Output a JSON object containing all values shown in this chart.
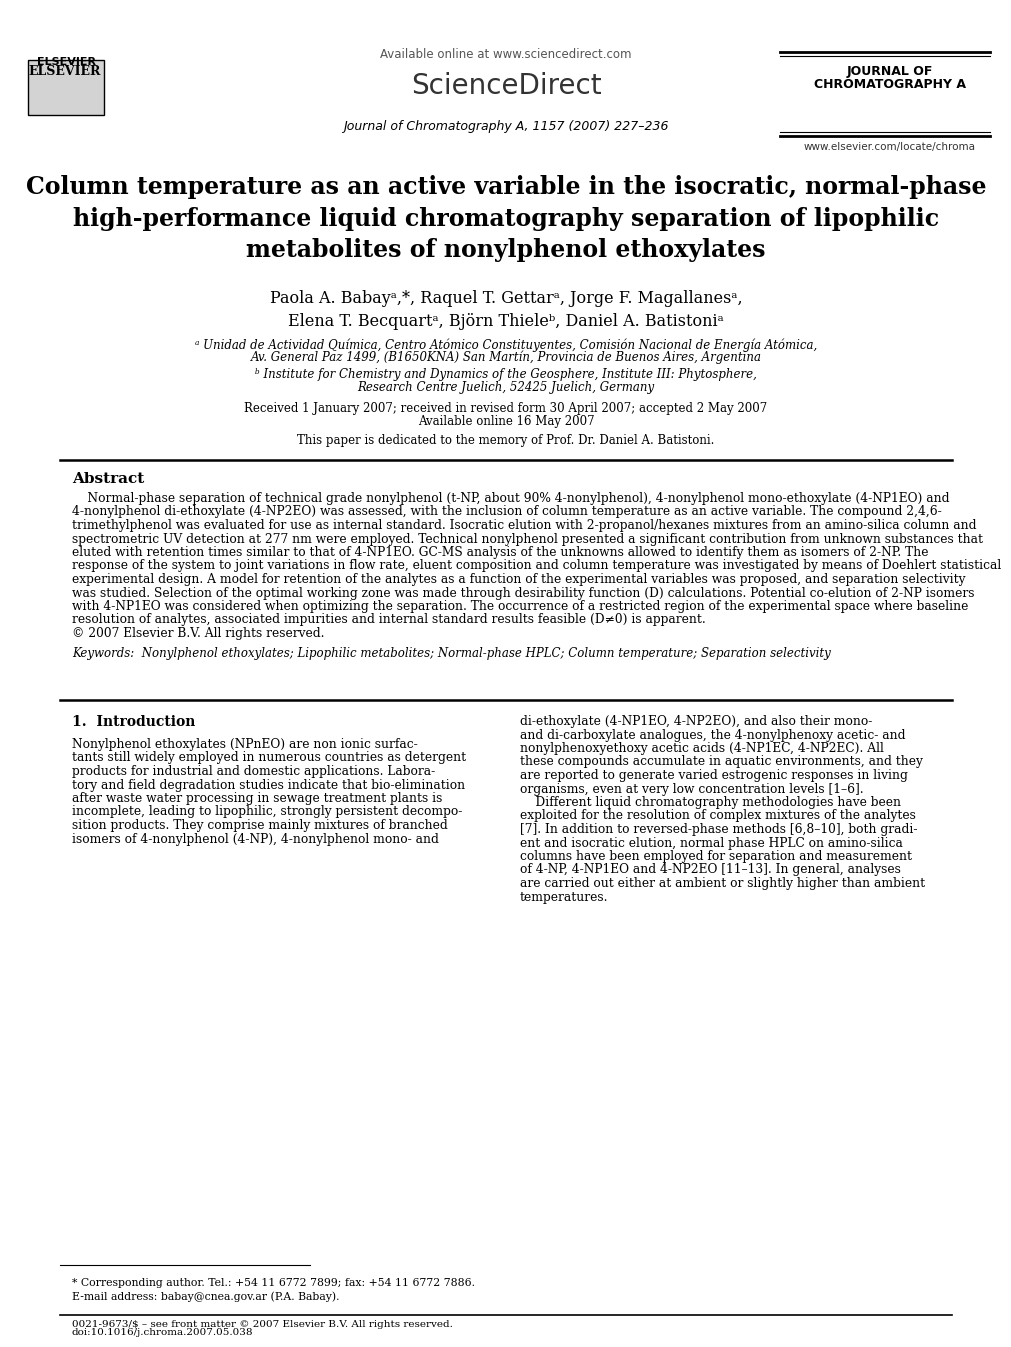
{
  "figsize": [
    9.92,
    13.23
  ],
  "dpi": 100,
  "bg_color": "#ffffff",
  "header": {
    "available_online": "Available online at www.sciencedirect.com",
    "sciencedirect": "ScienceDirect",
    "journal_line": "Journal of Chromatography A, 1157 (2007) 227–236",
    "journal_name_line1": "JOURNAL OF",
    "journal_name_line2": "CHROMATOGRAPHY A",
    "website": "www.elsevier.com/locate/chroma",
    "elsevier": "ELSEVIER"
  },
  "title": "Column temperature as an active variable in the isocratic, normal-phase\nhigh-performance liquid chromatography separation of lipophilic\nmetabolites of nonylphenol ethoxylates",
  "authors": "Paola A. Babayᵃ,*, Raquel T. Gettarᵃ, Jorge F. Magallanesᵃ,\nElena T. Becquartᵃ, Björn Thieleᵇ, Daniel A. Batistoniᵃ",
  "affiliation_a": "ᵃ Unidad de Actividad Química, Centro Atómico Constituyentes, Comisión Nacional de Energía Atómica,",
  "affiliation_a2": "Av. General Paz 1499, (B1650KNA) San Martín, Provincia de Buenos Aires, Argentina",
  "affiliation_b": "ᵇ Institute for Chemistry and Dynamics of the Geosphere, Institute III: Phytosphere,",
  "affiliation_b2": "Research Centre Juelich, 52425 Juelich, Germany",
  "received": "Received 1 January 2007; received in revised form 30 April 2007; accepted 2 May 2007",
  "available_online2": "Available online 16 May 2007",
  "dedication": "This paper is dedicated to the memory of Prof. Dr. Daniel A. Batistoni.",
  "abstract_title": "Abstract",
  "abstract_text": "Normal-phase separation of technical grade nonylphenol (t-NP, about 90% 4-nonylphenol), 4-nonylphenol mono-ethoxylate (4-NP1EO) and 4-nonylphenol di-ethoxylate (4-NP2EO) was assessed, with the inclusion of column temperature as an active variable. The compound 2,4,6-trimethylphenol was evaluated for use as internal standard. Isocratic elution with 2-propanol/hexanes mixtures from an amino-silica column and spectrometric UV detection at 277 nm were employed. Technical nonylphenol presented a significant contribution from unknown substances that eluted with retention times similar to that of 4-NP1EO. GC-MS analysis of the unknowns allowed to identify them as isomers of 2-NP. The response of the system to joint variations in flow rate, eluent composition and column temperature was investigated by means of Doehlert statistical experimental design. A model for retention of the analytes as a function of the experimental variables was proposed, and separation selectivity was studied. Selection of the optimal working zone was made through desirability function (D) calculations. Potential co-elution of 2-NP isomers with 4-NP1EO was considered when optimizing the separation. The occurrence of a restricted region of the experimental space where baseline resolution of analytes, associated impurities and internal standard results feasible (D≠0) is apparent.\n© 2007 Elsevier B.V. All rights reserved.",
  "keywords": "Keywords:  Nonylphenol ethoxylates; Lipophilic metabolites; Normal-phase HPLC; Column temperature; Separation selectivity",
  "section1_title": "1.  Introduction",
  "section1_left": "Nonylphenol ethoxylates (NPnEO) are non ionic surfactants still widely employed in numerous countries as detergent products for industrial and domestic applications. Laboratory and field degradation studies indicate that bio-elimination after waste water processing in sewage treatment plants is incomplete, leading to lipophilic, strongly persistent decomposition products. They comprise mainly mixtures of branched isomers of 4-nonylphenol (4-NP), 4-nonylphenol mono- and",
  "section1_right": "di-ethoxylate (4-NP1EO, 4-NP2EO), and also their mono- and di-carboxylate analogues, the 4-nonylphenoxy acetic- and nonylphenoxyethoxy acetic acids (4-NP1EC, 4-NP2EC). All these compounds accumulate in aquatic environments, and they are reported to generate varied estrogenic responses in living organisms, even at very low concentration levels [1–6].\n    Different liquid chromatography methodologies have been exploited for the resolution of complex mixtures of the analytes [7]. In addition to reversed-phase methods [6,8–10], both gradient and isocratic elution, normal phase HPLC on amino-silica columns have been employed for separation and measurement of 4-NP, 4-NP1EO and 4-NP2EO [11–13]. In general, analyses are carried out either at ambient or slightly higher than ambient temperatures.",
  "footnote_star": "* Corresponding author. Tel.: +54 11 6772 7899; fax: +54 11 6772 7886.",
  "footnote_email": "E-mail address: babay@cnea.gov.ar (P.A. Babay).",
  "footnote_issn": "0021-9673/$ – see front matter © 2007 Elsevier B.V. All rights reserved.",
  "footnote_doi": "doi:10.1016/j.chroma.2007.05.038"
}
